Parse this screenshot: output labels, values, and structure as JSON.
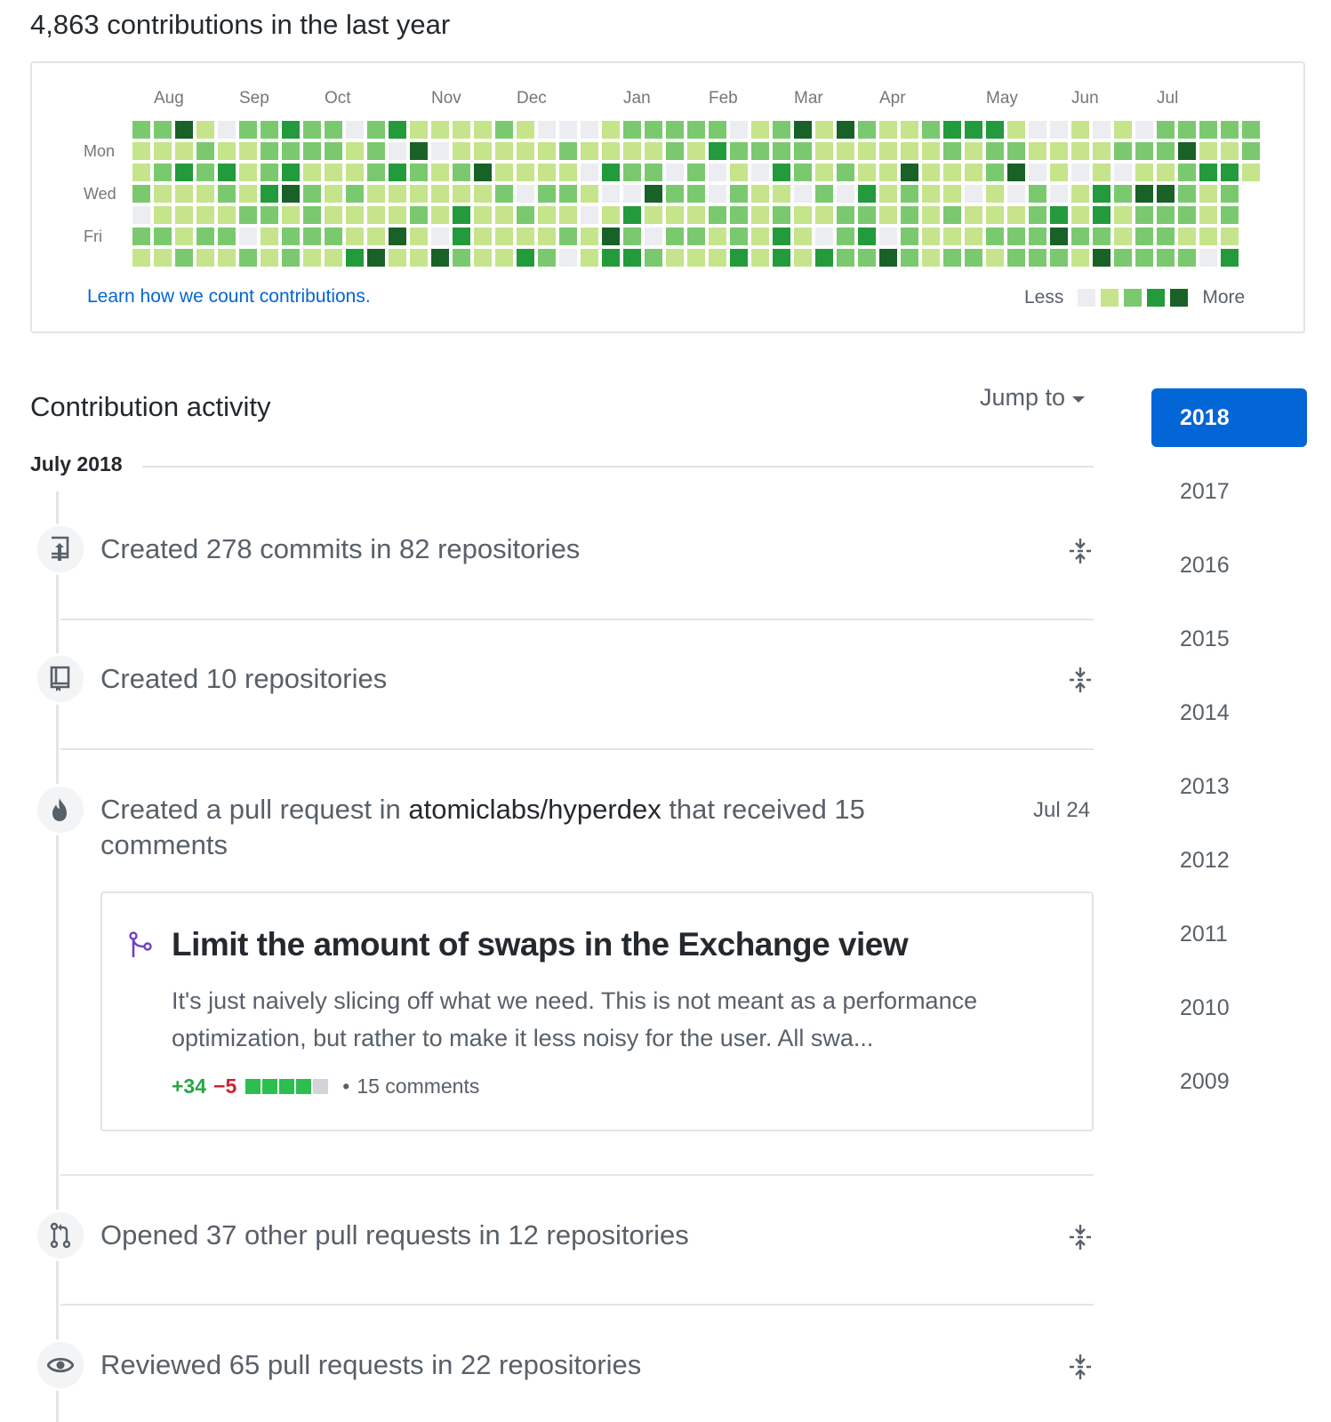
{
  "summary": "4,863 contributions in the last year",
  "graph": {
    "months": [
      "Aug",
      "Sep",
      "Oct",
      "Nov",
      "Dec",
      "Jan",
      "Feb",
      "Mar",
      "Apr",
      "May",
      "Jun",
      "Jul"
    ],
    "days": [
      "Mon",
      "Wed",
      "Fri"
    ],
    "learn_link": "Learn how we count contributions.",
    "legend_less": "Less",
    "legend_more": "More",
    "colors": [
      "#ebedf0",
      "#c6e48b",
      "#7bc96f",
      "#239a3b",
      "#196127"
    ]
  },
  "activity": {
    "title": "Contribution activity",
    "jump_to": "Jump to",
    "month_heading": "July 2018",
    "items": [
      {
        "icon": "repo-push-icon",
        "text": "Created 278 commits in 82 repositories"
      },
      {
        "icon": "repo-icon",
        "text": "Created 10 repositories"
      },
      {
        "icon": "flame-icon",
        "text_before": "Created a pull request in ",
        "repo": "atomiclabs/hyperdex",
        "text_after": " that received 15",
        "text_line2": "comments",
        "date": "Jul 24"
      },
      {
        "icon": "git-pull-request-icon",
        "text": "Opened 37 other pull requests in 12 repositories"
      },
      {
        "icon": "eye-icon",
        "text": "Reviewed 65 pull requests in 22 repositories"
      }
    ],
    "pr_card": {
      "title": "Limit the amount of swaps in the Exchange view",
      "body": "It's just naively slicing off what we need. This is not meant as a performance optimization, but rather to make it less noisy for the user. All swa...",
      "additions": "+34",
      "deletions": "−5",
      "diff_blocks": [
        "add",
        "add",
        "add",
        "add",
        "neutral"
      ],
      "comments": "15 comments"
    }
  },
  "years": [
    "2018",
    "2017",
    "2016",
    "2015",
    "2014",
    "2013",
    "2012",
    "2011",
    "2010",
    "2009"
  ],
  "selected_year": "2018"
}
